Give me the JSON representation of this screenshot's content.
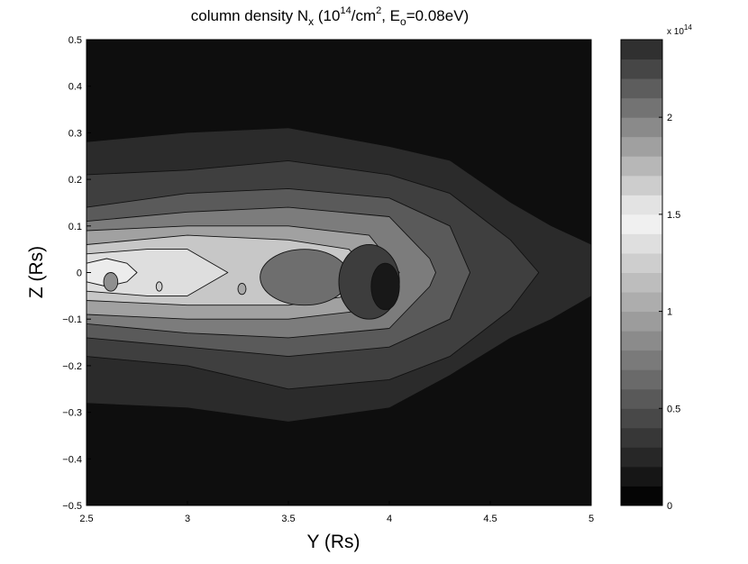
{
  "chart_data": {
    "type": "heatmap",
    "subtype": "filled-contour",
    "colormap": "gray",
    "title": {
      "main": "column density N",
      "main_sub": "x",
      "open": " (10",
      "open_sup": "14",
      "units": "/cm",
      "units_sup": "2",
      "energy": ", E",
      "energy_sub": "o",
      "value": "=0.08eV)"
    },
    "xlabel": "Y (Rs)",
    "ylabel": "Z (Rs)",
    "xlim": [
      2.5,
      5
    ],
    "ylim": [
      -0.5,
      0.5
    ],
    "x_ticks": [
      "2.5",
      "3",
      "3.5",
      "4",
      "4.5",
      "5"
    ],
    "y_ticks": [
      "0.5",
      "0.4",
      "0.3",
      "0.2",
      "0.1",
      "0",
      "−0.1",
      "−0.2",
      "−0.3",
      "−0.4",
      "−0.5"
    ],
    "colorbar": {
      "multiplier_base": "x 10",
      "multiplier_exp": "14",
      "range": [
        0,
        2.4
      ],
      "ticks": [
        "0",
        "0.5",
        "1",
        "1.5",
        "2"
      ],
      "tick_values": [
        0,
        0.5,
        1,
        1.5,
        2
      ],
      "levels": 24,
      "dark_end": "#050505",
      "light_end": "#f4f4f4"
    },
    "contours": [
      {
        "level": 0.2,
        "color": "#2b2b2b",
        "band": [
          [
            2.5,
            0.28,
            -0.28
          ],
          [
            3.0,
            0.3,
            -0.29
          ],
          [
            3.5,
            0.31,
            -0.32
          ],
          [
            4.0,
            0.27,
            -0.29
          ],
          [
            4.3,
            0.24,
            -0.22
          ],
          [
            4.6,
            0.15,
            -0.14
          ],
          [
            4.8,
            0.1,
            -0.1
          ],
          [
            5.0,
            0.06,
            -0.05
          ]
        ]
      },
      {
        "level": 0.6,
        "color": "#3f3f3f",
        "band": [
          [
            2.5,
            0.21,
            -0.18
          ],
          [
            3.0,
            0.22,
            -0.2
          ],
          [
            3.5,
            0.24,
            -0.25
          ],
          [
            4.0,
            0.21,
            -0.23
          ],
          [
            4.3,
            0.17,
            -0.18
          ],
          [
            4.6,
            0.07,
            -0.08
          ],
          [
            4.74,
            0.0,
            0.0
          ]
        ]
      },
      {
        "level": 0.9,
        "color": "#5a5a5a",
        "band": [
          [
            2.5,
            0.14,
            -0.14
          ],
          [
            3.0,
            0.17,
            -0.16
          ],
          [
            3.5,
            0.18,
            -0.18
          ],
          [
            4.0,
            0.16,
            -0.16
          ],
          [
            4.3,
            0.1,
            -0.1
          ],
          [
            4.4,
            0.0,
            0.0
          ]
        ]
      },
      {
        "level": 1.1,
        "color": "#7c7c7c",
        "band": [
          [
            2.5,
            0.11,
            -0.11
          ],
          [
            3.0,
            0.13,
            -0.13
          ],
          [
            3.5,
            0.14,
            -0.14
          ],
          [
            4.0,
            0.12,
            -0.12
          ],
          [
            4.2,
            0.03,
            -0.03
          ],
          [
            4.23,
            0.0,
            0.0
          ]
        ]
      },
      {
        "level": 1.3,
        "color": "#a1a1a1",
        "band": [
          [
            2.5,
            0.09,
            -0.09
          ],
          [
            3.0,
            0.1,
            -0.1
          ],
          [
            3.5,
            0.1,
            -0.1
          ],
          [
            3.9,
            0.08,
            -0.08
          ],
          [
            4.05,
            0.0,
            0.0
          ]
        ]
      },
      {
        "level": 1.5,
        "color": "#c7c7c7",
        "band": [
          [
            2.5,
            0.06,
            -0.06
          ],
          [
            3.0,
            0.08,
            -0.07
          ],
          [
            3.5,
            0.07,
            -0.07
          ],
          [
            3.8,
            0.05,
            -0.05
          ],
          [
            3.9,
            0.0,
            0.0
          ]
        ]
      },
      {
        "level": 1.6,
        "color": "#dedede",
        "band": [
          [
            2.5,
            0.04,
            -0.04
          ],
          [
            2.8,
            0.05,
            -0.05
          ],
          [
            3.0,
            0.05,
            -0.05
          ],
          [
            3.2,
            0.0,
            0.0
          ]
        ]
      },
      {
        "level": 1.7,
        "color": "#ececec",
        "band": [
          [
            2.5,
            0.02,
            -0.02
          ],
          [
            2.6,
            0.03,
            -0.03
          ],
          [
            2.7,
            0.02,
            -0.02
          ],
          [
            2.75,
            0.0,
            0.0
          ]
        ]
      }
    ],
    "holes": [
      {
        "level": 1.0,
        "color": "#6e6e6e",
        "cx": 3.58,
        "cy": -0.01,
        "rx": 0.22,
        "ry": 0.06
      },
      {
        "level": 0.6,
        "color": "#3d3d3d",
        "cx": 3.9,
        "cy": -0.02,
        "rx": 0.15,
        "ry": 0.08
      },
      {
        "level": 0.2,
        "color": "#181818",
        "cx": 3.98,
        "cy": -0.03,
        "rx": 0.07,
        "ry": 0.05
      }
    ],
    "spots": [
      {
        "level": 1.2,
        "color": "#8f8f8f",
        "cx": 2.62,
        "cy": -0.02,
        "rx": 0.035,
        "ry": 0.02
      },
      {
        "level": 1.5,
        "color": "#cfcfcf",
        "cx": 2.86,
        "cy": -0.03,
        "rx": 0.015,
        "ry": 0.01
      },
      {
        "level": 1.3,
        "color": "#a8a8a8",
        "cx": 3.27,
        "cy": -0.035,
        "rx": 0.02,
        "ry": 0.012
      }
    ],
    "background_color": "#0e0e0e"
  }
}
